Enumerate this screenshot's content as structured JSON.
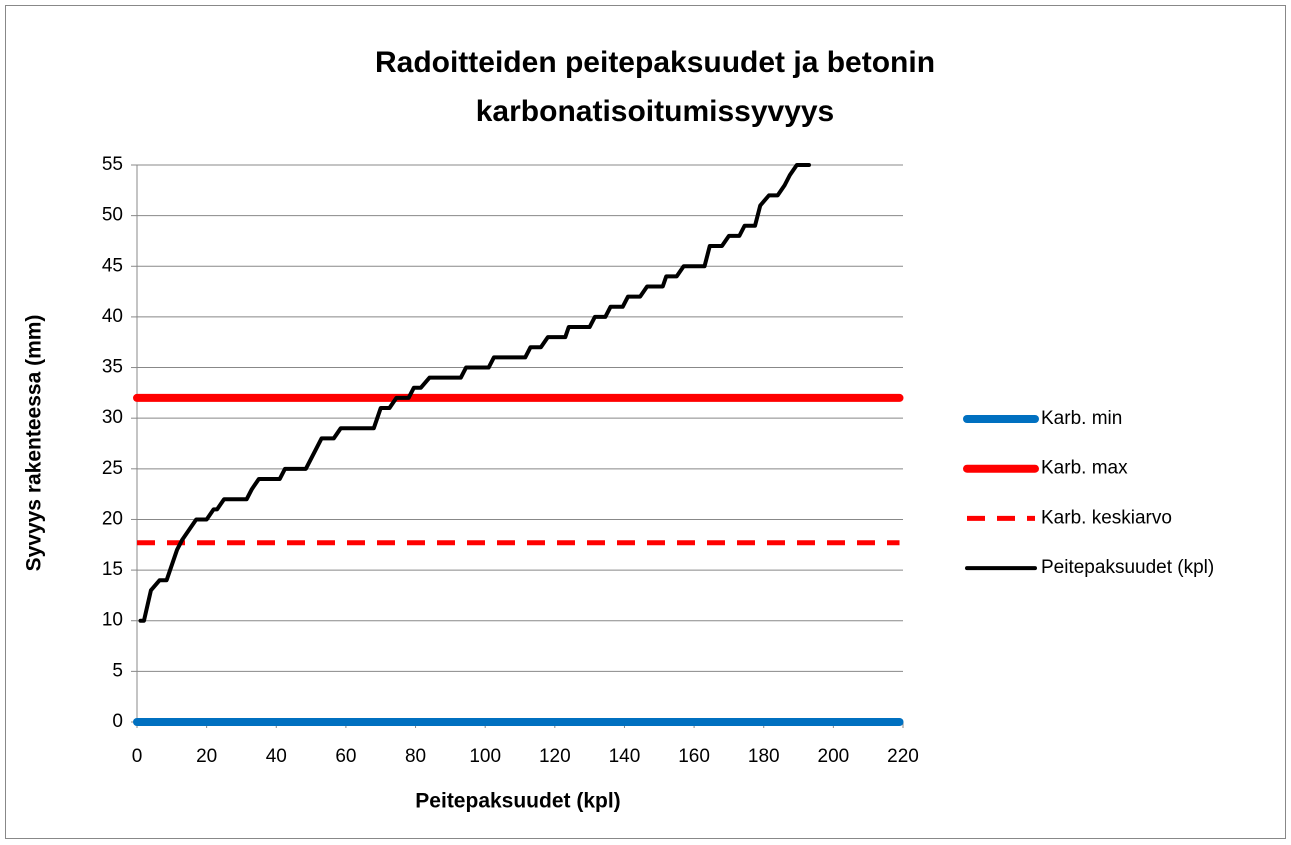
{
  "chart_data": {
    "type": "line",
    "title": [
      "Radoitteiden peitepaksuudet ja betonin",
      "karbonatisoitumissyvyys"
    ],
    "xlabel": "Peitepaksuudet (kpl)",
    "ylabel": "Syvyys rakenteessa (mm)",
    "xlim": [
      0,
      220
    ],
    "xticks": [
      0,
      20,
      40,
      60,
      80,
      100,
      120,
      140,
      160,
      180,
      200,
      220
    ],
    "ylim": [
      0,
      55
    ],
    "yticks": [
      0,
      5,
      10,
      15,
      20,
      25,
      30,
      35,
      40,
      45,
      50,
      55
    ],
    "grid": true,
    "legend": "right",
    "series": [
      {
        "name": "Karb. min",
        "color": "#0070c0",
        "style": "solid",
        "x": [
          0,
          219
        ],
        "values": [
          0,
          0
        ]
      },
      {
        "name": "Karb. max",
        "color": "#ff0000",
        "style": "solid",
        "x": [
          0,
          219
        ],
        "values": [
          32,
          32
        ]
      },
      {
        "name": "Karb. keskiarvo",
        "color": "#ff0000",
        "style": "dashed",
        "x": [
          0,
          219
        ],
        "values": [
          17.7,
          17.7
        ]
      },
      {
        "name": "Peitepaksuudet (kpl)",
        "color": "#000000",
        "style": "solid",
        "x": [
          1,
          2,
          4,
          6.5,
          8.5,
          11.5,
          13,
          15,
          17,
          20,
          22,
          23,
          25,
          31.5,
          33,
          35,
          41,
          42.5,
          48.5,
          50,
          53,
          56.5,
          58.5,
          68,
          70,
          72.5,
          74.5,
          78,
          79.5,
          81.5,
          84,
          93,
          94.5,
          101,
          102.5,
          111.5,
          113,
          116,
          118,
          123,
          124,
          130,
          131.5,
          134.5,
          136,
          139.5,
          141,
          144.5,
          146.5,
          151,
          152,
          155,
          157,
          163,
          164.5,
          168,
          170,
          173,
          174.5,
          177.5,
          179,
          181.5,
          184,
          186,
          187.5,
          189.5,
          193
        ],
        "values": [
          10,
          10,
          13,
          14,
          14,
          17,
          18,
          19,
          20,
          20,
          21,
          21,
          22,
          22,
          23,
          24,
          24,
          25,
          25,
          26,
          28,
          28,
          29,
          29,
          31,
          31,
          32,
          32,
          33,
          33,
          34,
          34,
          35,
          35,
          36,
          36,
          37,
          37,
          38,
          38,
          39,
          39,
          40,
          40,
          41,
          41,
          42,
          42,
          43,
          43,
          44,
          44,
          45,
          45,
          47,
          47,
          48,
          48,
          49,
          49,
          51,
          52,
          52,
          53,
          54,
          55,
          55
        ]
      }
    ]
  }
}
